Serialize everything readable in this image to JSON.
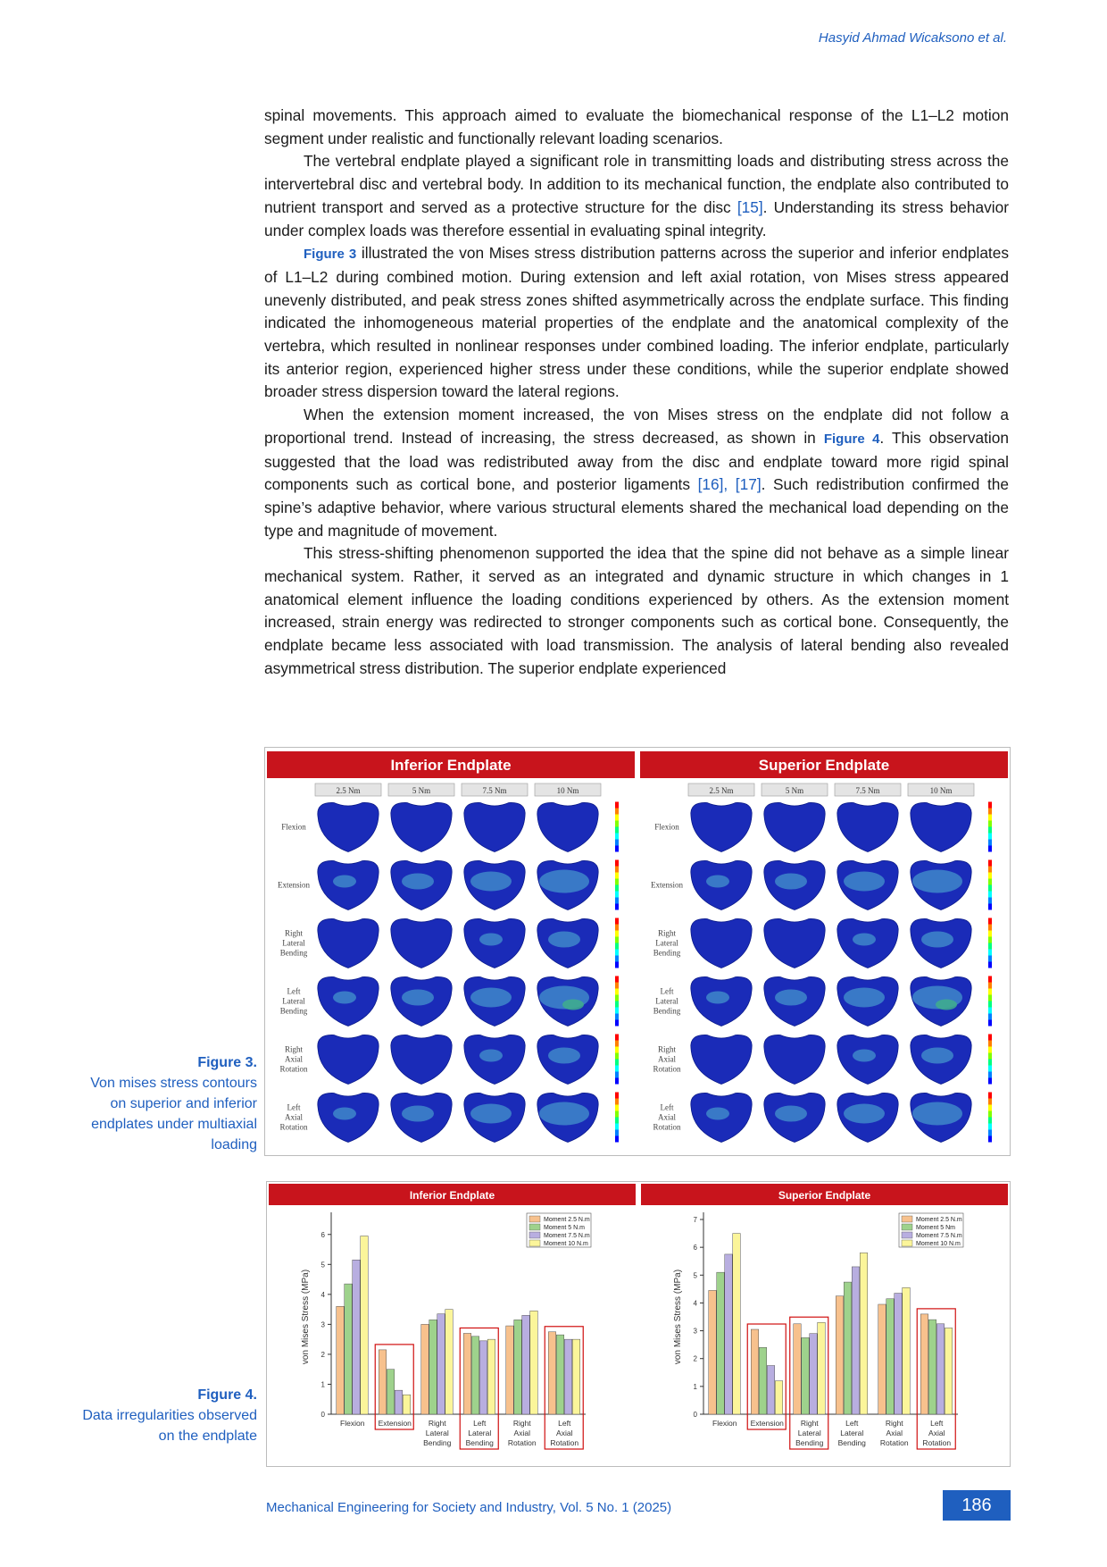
{
  "header": {
    "author": "Hasyid Ahmad Wicaksono et al."
  },
  "body": {
    "p1": "spinal movements. This approach aimed to evaluate the biomechanical response of the L1–L2 motion segment under realistic and functionally relevant loading scenarios.",
    "p2_a": "The vertebral endplate played a significant role in transmitting loads and distributing stress across the intervertebral disc and vertebral body. In addition to its mechanical function, the endplate also contributed to nutrient transport and served as a protective structure for the disc ",
    "p2_cite": "[15]",
    "p2_b": ". Understanding its stress behavior under complex loads was therefore essential in evaluating spinal integrity.",
    "p3_ref": "Figure 3",
    "p3": " illustrated the von Mises stress distribution patterns across the superior and inferior endplates of L1–L2 during combined motion. During extension and left axial rotation, von Mises stress appeared unevenly distributed, and peak stress zones shifted asymmetrically across the endplate surface. This finding indicated the inhomogeneous material properties of the endplate and the anatomical complexity of the vertebra, which resulted in nonlinear responses under combined loading. The inferior endplate, particularly its anterior region, experienced higher stress under these conditions, while the superior endplate showed broader stress dispersion toward the lateral regions.",
    "p4_a": "When the extension moment increased, the von Mises stress on the endplate did not follow a proportional trend. Instead of increasing, the stress decreased, as shown in ",
    "p4_ref": "Figure 4",
    "p4_b": ". This observation suggested that the load was redistributed away from the disc and endplate toward more rigid spinal components such as cortical bone, and posterior ligaments ",
    "p4_cite": "[16], [17]",
    "p4_c": ". Such redistribution confirmed the spine’s adaptive behavior, where various structural elements shared the mechanical load depending on the type and magnitude of movement.",
    "p5": "This stress-shifting phenomenon supported the idea that the spine did not behave as a simple linear mechanical system. Rather, it served as an integrated and dynamic structure in which changes in 1 anatomical element influence the loading conditions experienced by others. As the extension moment increased, strain energy was redirected to stronger components such as cortical bone. Consequently, the endplate became less associated with load transmission. The analysis of lateral bending also revealed asymmetrical stress distribution. The superior endplate experienced"
  },
  "fig3": {
    "caption_title": "Figure 3.",
    "caption_text": "Von mises stress contours on superior and inferior endplates under multiaxial loading",
    "panels": [
      "Inferior Endplate",
      "Superior Endplate"
    ],
    "moments": [
      "2.5 Nm",
      "5 Nm",
      "7.5 Nm",
      "10 Nm"
    ],
    "rows": [
      "Flexion",
      "Extension",
      "Right Lateral Bending",
      "Left Lateral Bending",
      "Right Axial Rotation",
      "Left Axial Rotation"
    ],
    "colors": {
      "header_red": "#c8141c",
      "contour_blue": "#1a2bb8",
      "contour_light": "#3f87c9",
      "contour_green": "#3fae8c"
    }
  },
  "fig4": {
    "caption_title": "Figure 4.",
    "caption_text": "Data irregularities observed on the endplate"
  },
  "chart_data": [
    {
      "type": "bar",
      "title": "Inferior Endplate",
      "xlabel": "",
      "ylabel": "von Mises Stress (MPa)",
      "ylim": [
        0,
        6.5
      ],
      "yticks": [
        0,
        1,
        2,
        3,
        4,
        5,
        6
      ],
      "categories": [
        "Flexion",
        "Extension",
        "Right Lateral Bending",
        "Left Lateral Bending",
        "Right Axial Rotation",
        "Left Axial Rotation"
      ],
      "category_lines": [
        [
          "Flexion"
        ],
        [
          "Extension"
        ],
        [
          "Right",
          "Lateral",
          "Bending"
        ],
        [
          "Left",
          "Lateral",
          "Bending"
        ],
        [
          "Right",
          "Axial",
          "Rotation"
        ],
        [
          "Left",
          "Axial",
          "Rotation"
        ]
      ],
      "series": [
        {
          "name": "Moment 2.5 N.m",
          "color": "#f7c18d",
          "values": [
            3.6,
            2.15,
            3.0,
            2.7,
            2.95,
            2.75
          ]
        },
        {
          "name": "Moment 5 N.m",
          "color": "#9ed28c",
          "values": [
            4.35,
            1.5,
            3.15,
            2.6,
            3.15,
            2.65
          ]
        },
        {
          "name": "Moment 7.5 N.m",
          "color": "#b8aee0",
          "values": [
            5.15,
            0.8,
            3.35,
            2.45,
            3.3,
            2.5
          ]
        },
        {
          "name": "Moment 10 N.m",
          "color": "#fbf59a",
          "values": [
            5.95,
            0.65,
            3.5,
            2.5,
            3.45,
            2.5
          ]
        }
      ],
      "highlighted": [
        "Extension",
        "Left Lateral Bending",
        "Left Axial Rotation"
      ],
      "legend": "top-right"
    },
    {
      "type": "bar",
      "title": "Superior Endplate",
      "xlabel": "",
      "ylabel": "von Mises Stress (MPa)",
      "ylim": [
        0,
        7
      ],
      "yticks": [
        0,
        1,
        2,
        3,
        4,
        5,
        6,
        7
      ],
      "categories": [
        "Flexion",
        "Extension",
        "Right Lateral Bending",
        "Left Lateral Bending",
        "Right Axial Rotation",
        "Left Axial Rotation"
      ],
      "category_lines": [
        [
          "Flexion"
        ],
        [
          "Extension"
        ],
        [
          "Right",
          "Lateral",
          "Bending"
        ],
        [
          "Left",
          "Lateral",
          "Bending"
        ],
        [
          "Right",
          "Axial",
          "Rotation"
        ],
        [
          "Left",
          "Axial",
          "Rotation"
        ]
      ],
      "series": [
        {
          "name": "Moment 2.5 N.m",
          "color": "#f7c18d",
          "values": [
            4.45,
            3.05,
            3.25,
            4.25,
            3.95,
            3.6
          ]
        },
        {
          "name": "Moment 5 Nm",
          "color": "#9ed28c",
          "values": [
            5.1,
            2.4,
            2.75,
            4.75,
            4.15,
            3.4
          ]
        },
        {
          "name": "Moment 7.5 N.m",
          "color": "#b8aee0",
          "values": [
            5.75,
            1.75,
            2.9,
            5.3,
            4.35,
            3.25
          ]
        },
        {
          "name": "Moment 10 N.m",
          "color": "#fbf59a",
          "values": [
            6.5,
            1.2,
            3.3,
            5.8,
            4.55,
            3.1
          ]
        }
      ],
      "highlighted": [
        "Extension",
        "Right Lateral Bending",
        "Left Axial Rotation"
      ],
      "legend": "top-right"
    }
  ],
  "footer": {
    "journal": "Mechanical Engineering for Society and Industry, Vol. 5 No. 1 (2025)",
    "page": "186"
  }
}
